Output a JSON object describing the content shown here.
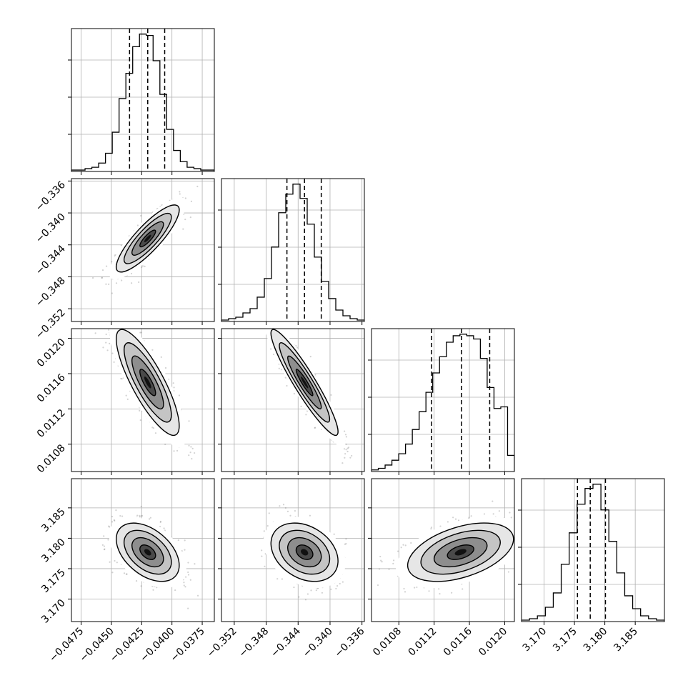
{
  "chart_data": {
    "type": "corner",
    "parameters": [
      {
        "name": "",
        "range": [
          -0.0483,
          -0.0365
        ],
        "ticks": [
          -0.0475,
          -0.045,
          -0.0425,
          -0.04,
          -0.0375
        ],
        "tick_labels": [
          "−0.0475",
          "−0.0450",
          "−0.0425",
          "−0.0400",
          "−0.0375"
        ],
        "quantiles": [
          -0.0435,
          -0.042,
          -0.0406
        ],
        "mean": -0.042,
        "sd": 0.0013
      },
      {
        "name": "",
        "range": [
          -0.3536,
          -0.3357
        ],
        "ticks": [
          -0.352,
          -0.348,
          -0.344,
          -0.34,
          -0.336
        ],
        "tick_labels": [
          "−0.352",
          "−0.348",
          "−0.344",
          "−0.340",
          "−0.336"
        ],
        "quantiles": [
          -0.3454,
          -0.3432,
          -0.3411
        ],
        "mean": -0.3432,
        "sd": 0.0021
      },
      {
        "name": "",
        "range": [
          0.01049,
          0.01211
        ],
        "ticks": [
          0.0108,
          0.0112,
          0.0116,
          0.012
        ],
        "tick_labels": [
          "0.0108",
          "0.0112",
          "0.0116",
          "0.0120"
        ],
        "quantiles": [
          0.01117,
          0.01151,
          0.01183
        ],
        "mean": 0.0115,
        "sd": 0.0003
      },
      {
        "name": "",
        "range": [
          3.1663,
          3.1898
        ],
        "ticks": [
          3.17,
          3.175,
          3.18,
          3.185
        ],
        "tick_labels": [
          "3.170",
          "3.175",
          "3.180",
          "3.185"
        ],
        "quantiles": [
          3.1755,
          3.1776,
          3.1801
        ],
        "mean": 3.1777,
        "sd": 0.0024
      }
    ],
    "histograms": [
      [
        1,
        1,
        2,
        3,
        6,
        13,
        28,
        52,
        70,
        89,
        98,
        97,
        79,
        55,
        30,
        15,
        7,
        3,
        2,
        1,
        1
      ],
      [
        1,
        2,
        3,
        6,
        9,
        17,
        30,
        52,
        76,
        89,
        96,
        86,
        68,
        45,
        28,
        16,
        8,
        4,
        2,
        1
      ],
      [
        1,
        2,
        4,
        7,
        11,
        17,
        26,
        37,
        49,
        61,
        71,
        80,
        84,
        85,
        84,
        82,
        70,
        52,
        39,
        40,
        10
      ],
      [
        1,
        2,
        4,
        10,
        20,
        40,
        62,
        82,
        93,
        96,
        78,
        56,
        34,
        18,
        9,
        4,
        2,
        1
      ]
    ],
    "pairs": [
      {
        "x": 0,
        "y": 1,
        "rho": 0.85
      },
      {
        "x": 0,
        "y": 2,
        "rho": -0.82
      },
      {
        "x": 1,
        "y": 2,
        "rho": -0.93
      },
      {
        "x": 0,
        "y": 3,
        "rho": -0.45
      },
      {
        "x": 1,
        "y": 3,
        "rho": -0.3
      },
      {
        "x": 2,
        "y": 3,
        "rho": 0.45
      }
    ],
    "grid": true,
    "colors": {
      "hist": "#000000",
      "scatter": "#7f7f7f",
      "grid": "#b0b0b0"
    }
  }
}
